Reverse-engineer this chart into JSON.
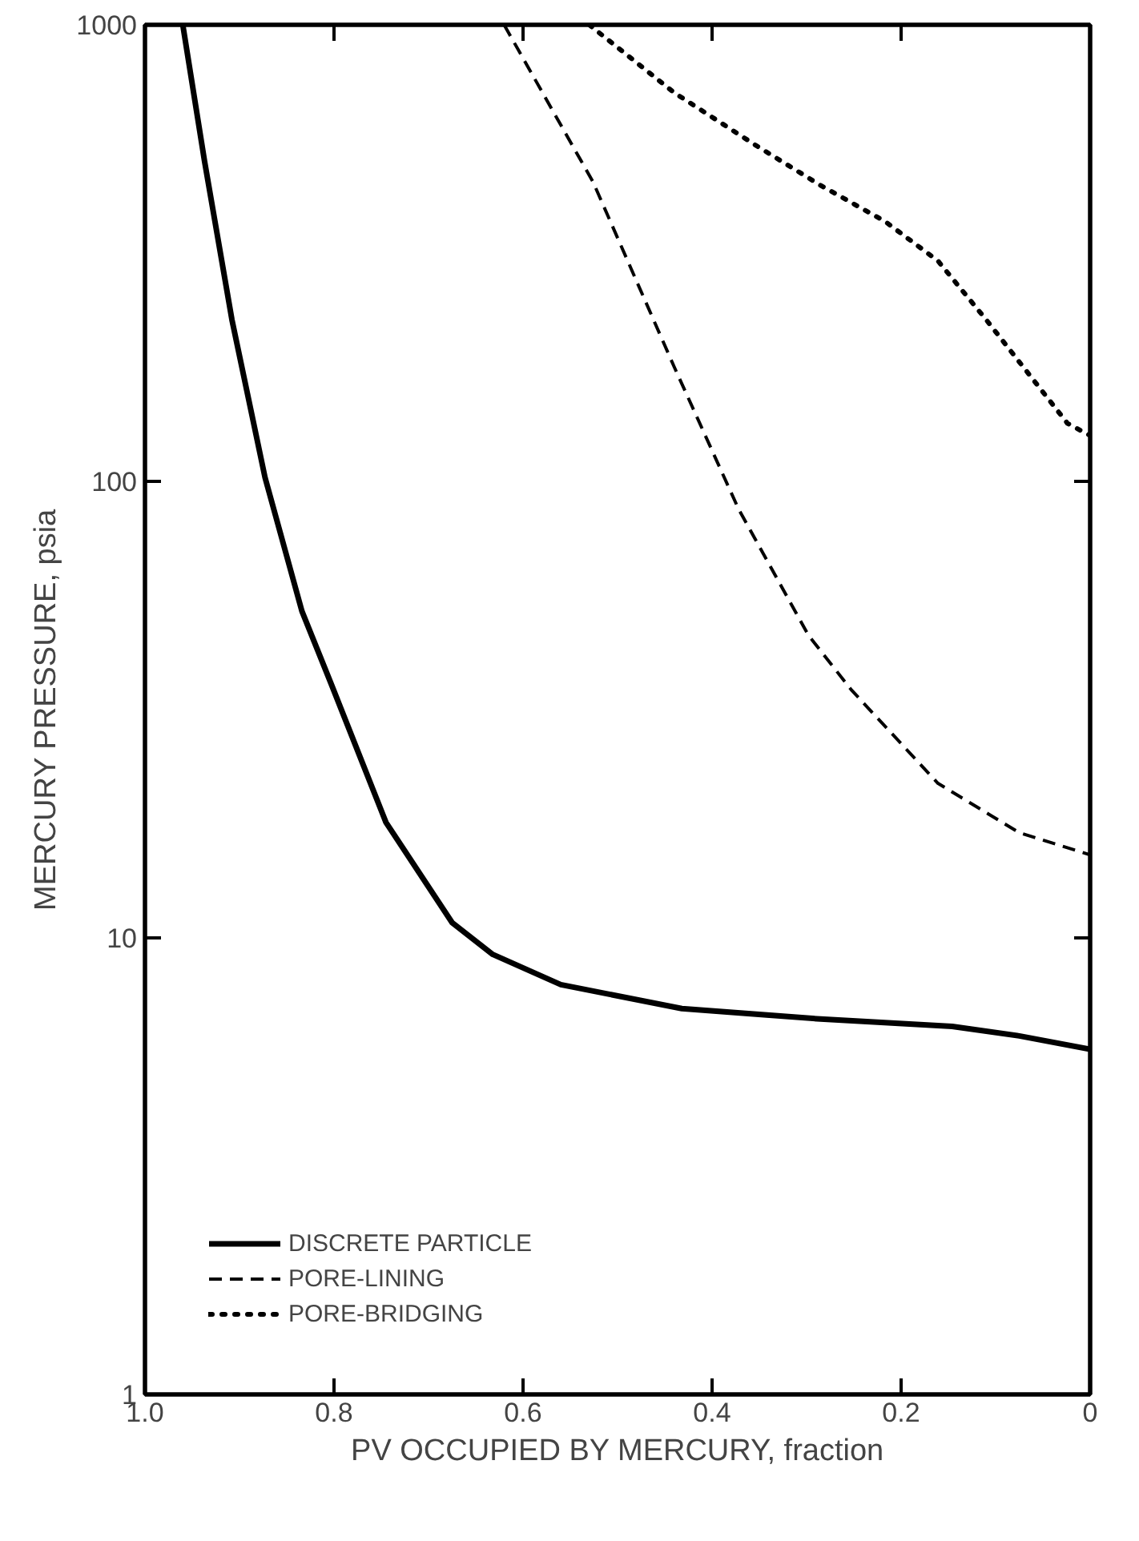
{
  "chart_data": {
    "type": "line",
    "xlabel": "PV OCCUPIED BY MERCURY, fraction",
    "ylabel": "MERCURY PRESSURE, psia",
    "xlim": [
      1.0,
      0
    ],
    "ylim": [
      1,
      1000
    ],
    "log": "y",
    "xticks": [
      {
        "value": 1.0,
        "label": "1.0"
      },
      0.8,
      0.6,
      0.4,
      0.2,
      0
    ],
    "yticks": [
      1,
      10,
      100,
      1000
    ],
    "grid": false,
    "legend": "bottom left",
    "series": [
      {
        "name": "DISCRETE PARTICLE",
        "color": "#000000",
        "line_style": "solid",
        "x": [
          0.96,
          0.937,
          0.908,
          0.873,
          0.834,
          0.803,
          0.745,
          0.675,
          0.632,
          0.56,
          0.432,
          0.289,
          0.146,
          0.075,
          0
        ],
        "values": [
          1000,
          503,
          226,
          102,
          52,
          36,
          17.9,
          10.8,
          9.2,
          7.9,
          7.0,
          6.65,
          6.4,
          6.1,
          5.7
        ]
      },
      {
        "name": "PORE-LINING",
        "color": "#000000",
        "line_style": "dashed",
        "x": [
          0.62,
          0.526,
          0.44,
          0.372,
          0.298,
          0.253,
          0.161,
          0.075,
          0
        ],
        "values": [
          1000,
          453,
          178,
          87,
          46,
          35,
          21.8,
          17,
          15.2
        ]
      },
      {
        "name": "PORE-BRIDGING",
        "color": "#000000",
        "line_style": "dotted",
        "x": [
          0.53,
          0.44,
          0.354,
          0.286,
          0.217,
          0.161,
          0.11,
          0.024,
          0
        ],
        "values": [
          1000,
          710,
          545,
          446,
          371,
          304,
          226,
          134,
          126
        ]
      }
    ]
  }
}
